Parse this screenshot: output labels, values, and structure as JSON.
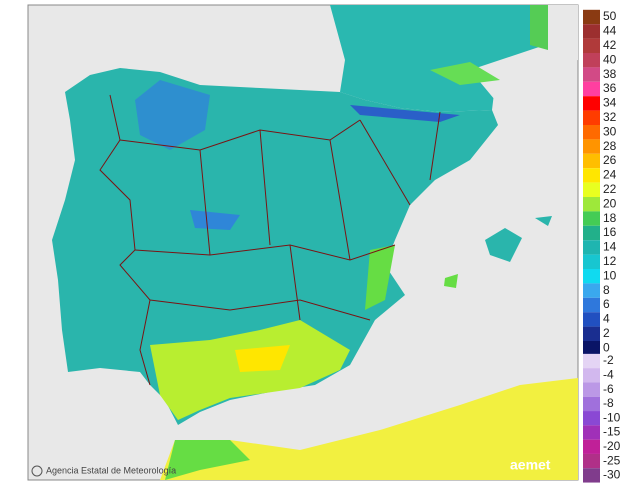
{
  "legend": {
    "upper": {
      "labels": [
        50,
        44,
        42,
        40,
        38,
        36,
        34,
        32,
        30,
        28,
        26,
        24,
        22,
        20,
        18,
        16,
        14,
        12,
        10,
        8,
        6,
        4,
        2,
        0
      ],
      "colors": [
        "#8a3a12",
        "#9c2f2f",
        "#b03a3a",
        "#c0405a",
        "#d24a86",
        "#ff3fa0",
        "#ff0000",
        "#ff3c00",
        "#ff6a00",
        "#ff9400",
        "#ffbe00",
        "#ffe600",
        "#e8ff20",
        "#9ee83a",
        "#44cc55",
        "#22b08a",
        "#1fb5b0",
        "#18c6d0",
        "#10daf0",
        "#3aa8ee",
        "#2f78dc",
        "#2150c0",
        "#1a2e90",
        "#0a1466"
      ]
    },
    "lower": {
      "labels": [
        -2,
        -4,
        -6,
        -8,
        -10,
        -15,
        -20,
        -25,
        -30
      ],
      "colors": [
        "#e4d4f4",
        "#d2b8ee",
        "#bb98e6",
        "#a070dc",
        "#8a48d4",
        "#a030b8",
        "#c02098",
        "#b03088",
        "#803c8c"
      ]
    }
  },
  "footer": {
    "agency": "Agencia Estatal de Meteorología",
    "logo": "aemet"
  }
}
